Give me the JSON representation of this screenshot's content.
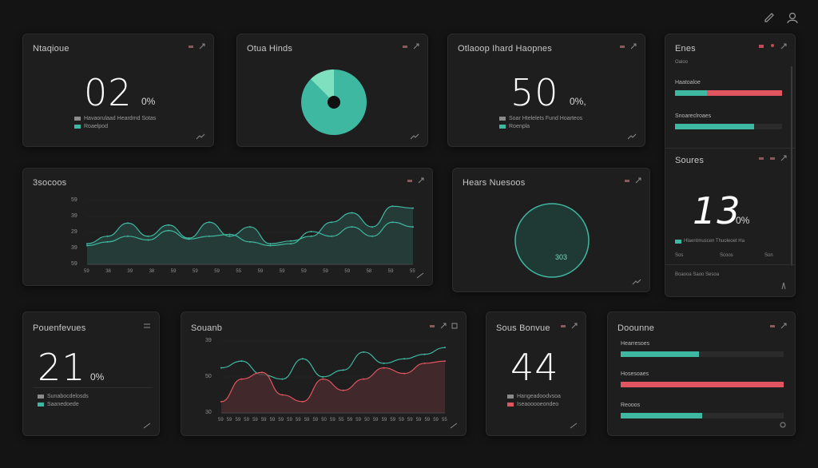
{
  "colors": {
    "teal": "#3fb8a2",
    "teal_fill": "#2a4a44",
    "red": "#e0555f",
    "red_fill": "#4a2a2e",
    "panel": "#1e1e1e",
    "bg": "#141414"
  },
  "topbar": {
    "icons": [
      "pen-icon",
      "user-icon"
    ]
  },
  "card1": {
    "title": "Ntaqioue",
    "value": "02",
    "unit": "0%",
    "legend": [
      {
        "label": "Havaorulaad Heardmd Sotas",
        "color": "#8a8a8a"
      },
      {
        "label": "Roaelpod",
        "color": "#3fb8a2"
      }
    ]
  },
  "card2": {
    "title": "Otua Hinds",
    "pie": {
      "slices": [
        {
          "label": "teal",
          "value": 0.92
        },
        {
          "label": "light",
          "value": 0.08
        }
      ]
    }
  },
  "card3": {
    "title": "Otlaoop Ihard Haopnes",
    "value": "50",
    "unit": "0%,",
    "legend": [
      {
        "label": "Soar Htelelets Fund Hoarteos",
        "color": "#8a8a8a"
      },
      {
        "label": "Roenpla",
        "color": "#3fb8a2"
      }
    ]
  },
  "card4": {
    "title": "Enes",
    "subtitle": "Oaloo",
    "bars": [
      {
        "label": "Haatoaloe",
        "value": 0.3,
        "rest": 0.7,
        "color": "#3fb8a2",
        "rest_color": "#e0555f"
      },
      {
        "label": "Snoareclroaes",
        "value": 0.74,
        "color": "#3fb8a2"
      }
    ]
  },
  "card5": {
    "title": "Soures",
    "value": "13",
    "unit": "0%",
    "legend": "Hlaentmuscen Thuoleoet Ha",
    "footer": [
      "Sos",
      "Scoos",
      "Son"
    ],
    "caption": "Boaooa Saoo Sesoa"
  },
  "card6": {
    "title": "3socoos",
    "y_ticks": [
      "59",
      "39",
      "29",
      "39",
      "59"
    ],
    "x_ticks": [
      "59",
      "38",
      "39",
      "38",
      "59",
      "59",
      "59",
      "55",
      "59",
      "59",
      "59",
      "59",
      "59",
      "58",
      "59",
      "55"
    ]
  },
  "card7": {
    "title": "Hears Nuesoos",
    "gauge_value": "303"
  },
  "card8": {
    "title": "Pouenfevues",
    "value": "21",
    "unit": "0%",
    "legend": [
      {
        "label": "Sunabocdelosds",
        "color": "#8a8a8a"
      },
      {
        "label": "Saanedoede",
        "color": "#3fb8a2"
      }
    ]
  },
  "card9": {
    "title": "Souanb",
    "y_ticks": [
      "39",
      "50",
      "30"
    ],
    "x_ticks": [
      "59",
      "59",
      "59",
      "59",
      "59",
      "59",
      "59",
      "59",
      "59",
      "59",
      "59",
      "59",
      "50",
      "59",
      "55",
      "59",
      "59",
      "50",
      "59",
      "59",
      "59",
      "59",
      "59",
      "59",
      "59",
      "59",
      "55"
    ]
  },
  "card10": {
    "title": "Sous Bonvue",
    "value": "44",
    "legend": [
      {
        "label": "Hangeadoodvsoa",
        "color": "#8a8a8a"
      },
      {
        "label": "Iseaooooeondeo",
        "color": "#e0555f"
      }
    ]
  },
  "card11": {
    "title": "Doounne",
    "bars": [
      {
        "label": "Hearresoes",
        "value": 0.48,
        "color": "#3fb8a2"
      },
      {
        "label": "Hosesoaes",
        "value": 1.0,
        "color": "#e0555f"
      },
      {
        "label": "Reooos",
        "value": 0.5,
        "color": "#3fb8a2"
      }
    ]
  },
  "chart_data": [
    {
      "type": "area",
      "series": [
        {
          "values": [
            22,
            30,
            44,
            30,
            42,
            28,
            45,
            30,
            40,
            22,
            25,
            30,
            45,
            55,
            40,
            62,
            60
          ]
        },
        {
          "values": [
            20,
            24,
            30,
            26,
            36,
            27,
            30,
            32,
            24,
            20,
            22,
            35,
            30,
            40,
            30,
            45,
            40
          ]
        }
      ]
    },
    {
      "type": "area",
      "series": [
        {
          "values": [
            40,
            46,
            34,
            30,
            48,
            32,
            38,
            54,
            44,
            48,
            52,
            58
          ]
        },
        {
          "values": [
            10,
            30,
            36,
            16,
            10,
            30,
            20,
            30,
            40,
            35,
            44,
            46
          ]
        }
      ]
    }
  ]
}
